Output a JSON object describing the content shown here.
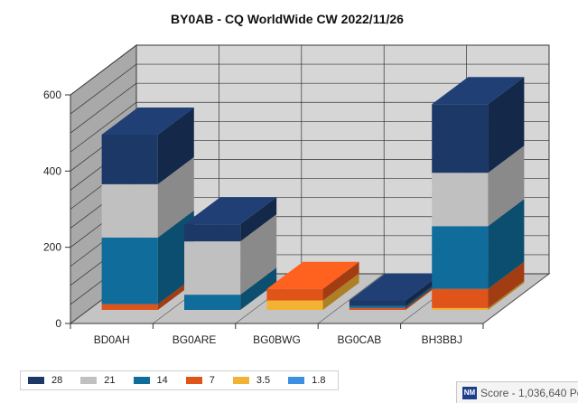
{
  "chart_data": {
    "type": "bar",
    "stacked": true,
    "style": "3d",
    "title": "BY0AB - CQ WorldWide CW 2022/11/26",
    "xlabel": "",
    "ylabel": "",
    "categories": [
      "BD0AH",
      "BG0ARE",
      "BG0BWG",
      "BG0CAB",
      "BH3BBJ"
    ],
    "yticks": [
      "0",
      "200",
      "400",
      "600"
    ],
    "ylim": [
      0,
      600
    ],
    "grid": true,
    "legend_position": "bottom-left",
    "series": [
      {
        "name": "1.8",
        "color": "#3d8fe0",
        "values": [
          0,
          0,
          0,
          0,
          0
        ]
      },
      {
        "name": "3.5",
        "color": "#f2b233",
        "values": [
          0,
          0,
          25,
          0,
          5
        ]
      },
      {
        "name": "7",
        "color": "#e0541a",
        "values": [
          15,
          0,
          30,
          5,
          50
        ]
      },
      {
        "name": "14",
        "color": "#106c9a",
        "values": [
          175,
          40,
          0,
          5,
          165
        ]
      },
      {
        "name": "21",
        "color": "#c0c0c0",
        "values": [
          140,
          140,
          0,
          0,
          140
        ]
      },
      {
        "name": "28",
        "color": "#1c3866",
        "values": [
          130,
          45,
          0,
          15,
          180
        ]
      }
    ]
  },
  "legend": {
    "items": [
      {
        "label": "28",
        "color": "#1c3866"
      },
      {
        "label": "21",
        "color": "#c0c0c0"
      },
      {
        "label": "14",
        "color": "#106c9a"
      },
      {
        "label": "7",
        "color": "#e0541a"
      },
      {
        "label": "3.5",
        "color": "#f2b233"
      },
      {
        "label": "1.8",
        "color": "#3d8fe0"
      }
    ]
  },
  "status_bar": {
    "logo_text": "NM",
    "score_text": "Score - 1,036,640 Po"
  }
}
